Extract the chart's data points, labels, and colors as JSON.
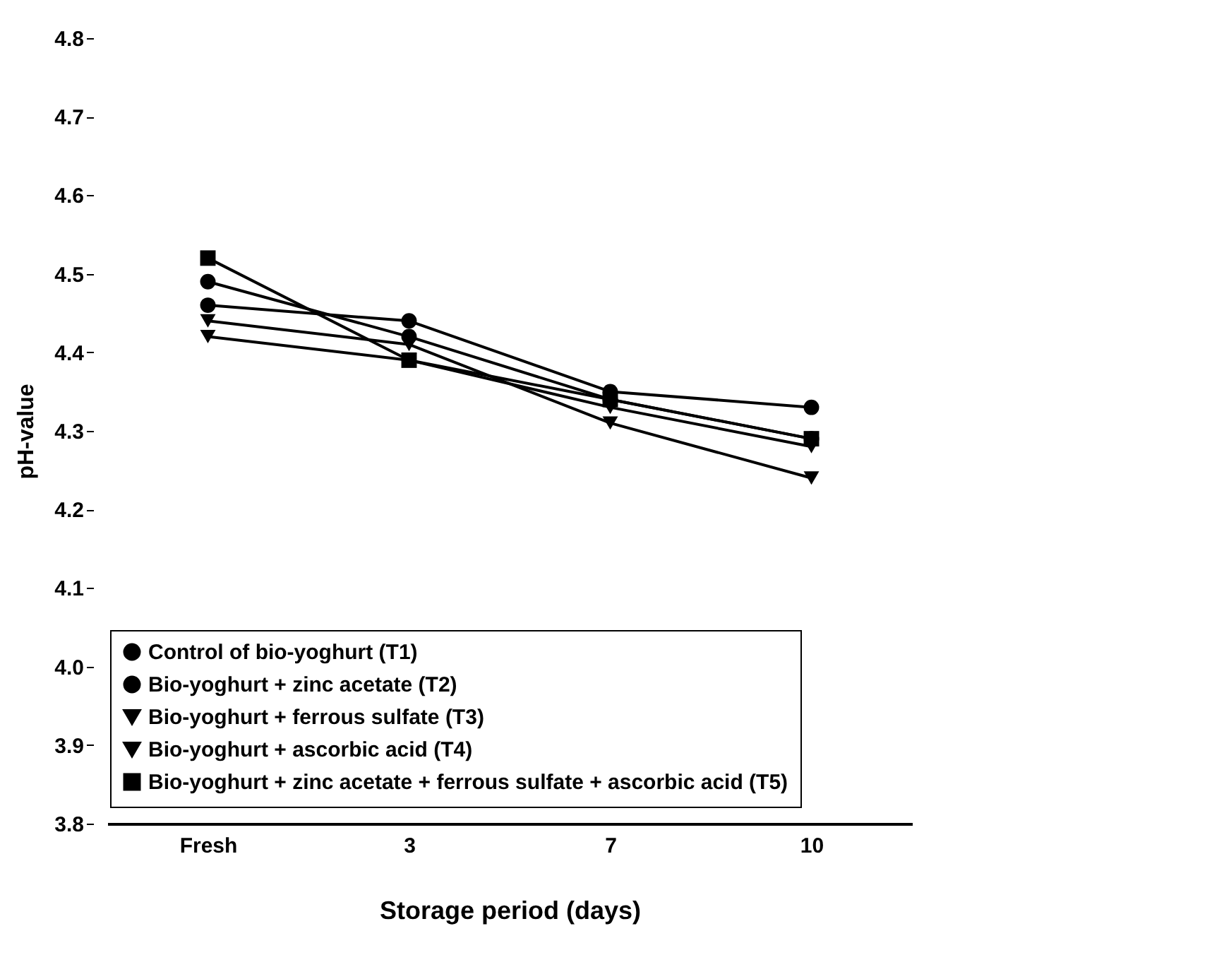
{
  "chart_data": {
    "type": "line",
    "xlabel": "Storage period (days)",
    "ylabel": "pH-value",
    "categories": [
      "Fresh",
      "3",
      "7",
      "10"
    ],
    "ylim": [
      3.8,
      4.8
    ],
    "yticks": [
      3.8,
      3.9,
      {
        "value": 4,
        "label": "4.0"
      },
      4.1,
      4.2,
      4.3,
      4.4,
      4.5,
      4.6,
      4.7,
      4.8
    ],
    "grid": false,
    "legend": "bottom",
    "series": [
      {
        "name": "Control of bio-yoghurt (T1)",
        "color": "#000000",
        "marker": "circle",
        "values": [
          4.49,
          4.42,
          4.34,
          4.29
        ]
      },
      {
        "name": "Bio-yoghurt + zinc acetate (T2)",
        "color": "#000000",
        "marker": "circle",
        "values": [
          4.46,
          4.44,
          4.35,
          4.33
        ]
      },
      {
        "name": "Bio-yoghurt + ferrous sulfate (T3)",
        "color": "#000000",
        "marker": "triangle",
        "values": [
          4.42,
          4.39,
          4.33,
          4.28
        ]
      },
      {
        "name": "Bio-yoghurt + ascorbic acid (T4)",
        "color": "#000000",
        "marker": "triangle",
        "values": [
          4.44,
          4.41,
          4.31,
          4.24
        ]
      },
      {
        "name": "Bio-yoghurt + zinc acetate + ferrous sulfate + ascorbic acid (T5)",
        "color": "#000000",
        "marker": "square",
        "values": [
          4.52,
          4.39,
          4.34,
          4.29
        ]
      }
    ]
  }
}
